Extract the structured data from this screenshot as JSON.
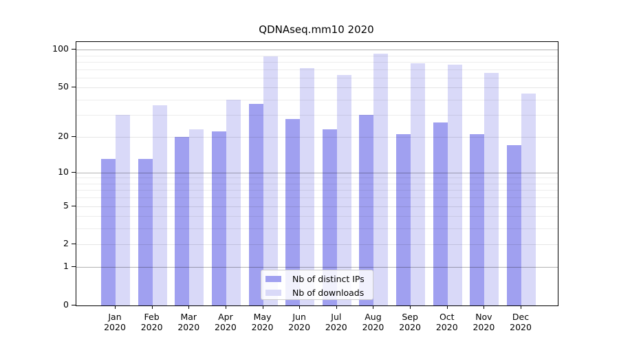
{
  "chart_data": {
    "type": "bar",
    "title": "QDNAseq.mm10 2020",
    "categories": [
      "Jan 2020",
      "Feb 2020",
      "Mar 2020",
      "Apr 2020",
      "May 2020",
      "Jun 2020",
      "Jul 2020",
      "Aug 2020",
      "Sep 2020",
      "Oct 2020",
      "Nov 2020",
      "Dec 2020"
    ],
    "series": [
      {
        "name": "Nb of distinct IPs",
        "color": "#a0a0f0",
        "values": [
          13,
          13,
          20,
          22,
          37,
          28,
          23,
          30,
          21,
          26,
          21,
          17
        ]
      },
      {
        "name": "Nb of downloads",
        "color": "#d9d9f8",
        "values": [
          30,
          36,
          23,
          40,
          88,
          71,
          63,
          93,
          78,
          76,
          65,
          45
        ]
      }
    ],
    "xlabel": "",
    "ylabel": "",
    "yscale": "log1p",
    "ylim": [
      0,
      115
    ],
    "yticks": [
      0,
      1,
      2,
      5,
      10,
      20,
      50,
      100
    ],
    "emphasized_gridlines": [
      1,
      10,
      100
    ],
    "minor_gridlines": [
      3,
      4,
      6,
      7,
      8,
      9,
      30,
      40,
      60,
      70,
      80,
      90
    ],
    "grid": true,
    "legend_position": "lower center"
  }
}
